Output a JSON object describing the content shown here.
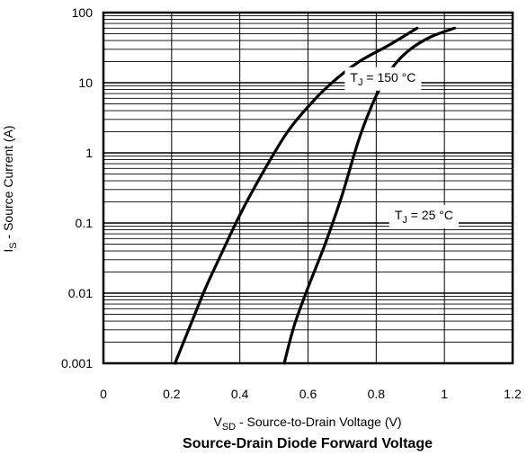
{
  "chart_data": {
    "type": "line",
    "title": "Source-Drain Diode Forward Voltage",
    "xlabel": {
      "main": "V",
      "sub": "SD",
      "rest": " - Source-to-Drain Voltage (V)"
    },
    "ylabel": {
      "main": "I",
      "sub": "S",
      "rest": " - Source Current (A)"
    },
    "xlim": [
      0,
      1.2
    ],
    "ylim": [
      0.001,
      100
    ],
    "yscale": "log",
    "grid": true,
    "x_ticks": [
      {
        "value": 0,
        "label": "0"
      },
      {
        "value": 0.2,
        "label": "0.2"
      },
      {
        "value": 0.4,
        "label": "0.4"
      },
      {
        "value": 0.6,
        "label": "0.6"
      },
      {
        "value": 0.8,
        "label": "0.8"
      },
      {
        "value": 1.0,
        "label": "1"
      },
      {
        "value": 1.2,
        "label": "1.2"
      }
    ],
    "y_ticks": [
      {
        "value": 0.001,
        "label": "0.001"
      },
      {
        "value": 0.01,
        "label": "0.01"
      },
      {
        "value": 0.1,
        "label": "0.1"
      },
      {
        "value": 1,
        "label": "1"
      },
      {
        "value": 10,
        "label": "10"
      },
      {
        "value": 100,
        "label": "100"
      }
    ],
    "series": [
      {
        "name": "T_J = 150 °C",
        "label": {
          "main": "T",
          "sub": "J",
          "rest": " = 150 °C"
        },
        "label_at": {
          "x": 0.82,
          "y": 12
        },
        "x": [
          0.21,
          0.26,
          0.3,
          0.35,
          0.4,
          0.46,
          0.54,
          0.62,
          0.68,
          0.75,
          0.84,
          0.92
        ],
        "y": [
          0.001,
          0.004,
          0.012,
          0.04,
          0.13,
          0.45,
          2.0,
          5.8,
          11,
          20,
          35,
          60
        ]
      },
      {
        "name": "T_J = 25 °C",
        "label": {
          "main": "T",
          "sub": "J",
          "rest": " = 25 °C"
        },
        "label_at": {
          "x": 0.94,
          "y": 0.13
        },
        "x": [
          0.53,
          0.56,
          0.6,
          0.65,
          0.7,
          0.75,
          0.8,
          0.85,
          0.9,
          0.96,
          1.03
        ],
        "y": [
          0.001,
          0.0035,
          0.012,
          0.05,
          0.25,
          1.6,
          6.5,
          17,
          30,
          45,
          60
        ]
      }
    ]
  }
}
